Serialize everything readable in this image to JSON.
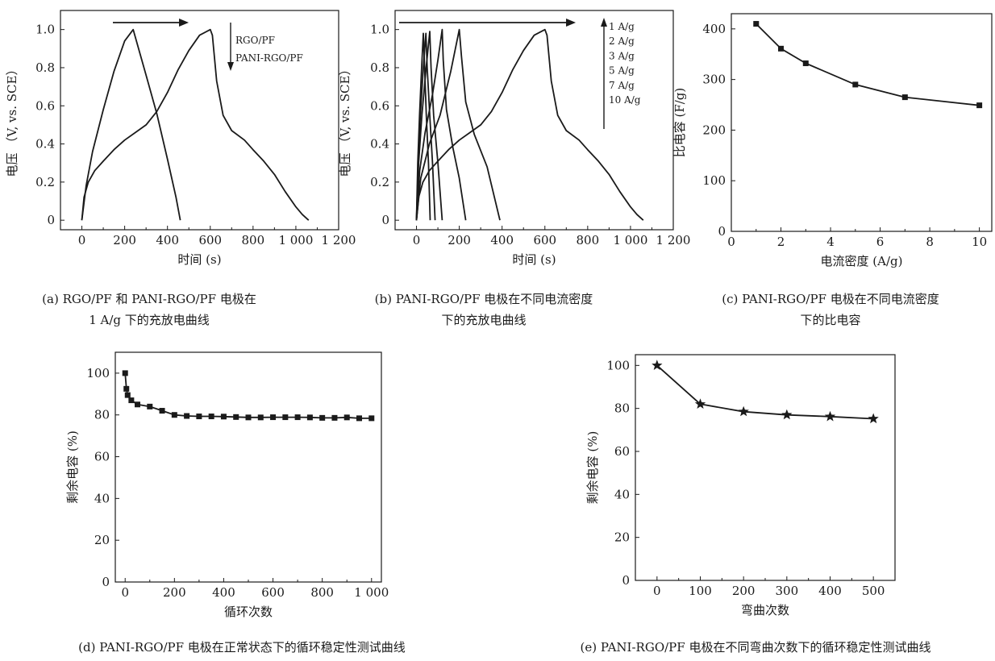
{
  "chart_data": [
    {
      "id": "a",
      "type": "line",
      "xlabel": "时间 (s)",
      "ylabel": "电压 （V, vs. SCE）",
      "xlim": [
        -100,
        1200
      ],
      "ylim": [
        -0.05,
        1.1
      ],
      "xticks": [
        0,
        200,
        400,
        600,
        800,
        1000,
        1200
      ],
      "xtick_labels": [
        "0",
        "200",
        "400",
        "600",
        "800",
        "1 000",
        "1 200"
      ],
      "yticks": [
        0,
        0.2,
        0.4,
        0.6,
        0.8,
        1.0
      ],
      "ytick_labels": [
        "0",
        "0.2",
        "0.4",
        "0.6",
        "0.8",
        "1.0"
      ],
      "legend_labels": [
        "RGO/PF",
        "PANI-RGO/PF"
      ],
      "series": [
        {
          "x": [
            0,
            20,
            50,
            100,
            150,
            200,
            240,
            300,
            350,
            400,
            440,
            460
          ],
          "y": [
            0,
            0.18,
            0.36,
            0.58,
            0.78,
            0.94,
            1.0,
            0.76,
            0.56,
            0.32,
            0.12,
            0.0
          ]
        },
        {
          "x": [
            0,
            10,
            30,
            60,
            100,
            150,
            200,
            250,
            300,
            350,
            400,
            450,
            500,
            550,
            600,
            610,
            630,
            660,
            700,
            760,
            800,
            850,
            900,
            950,
            1000,
            1030,
            1060
          ],
          "y": [
            0,
            0.12,
            0.2,
            0.26,
            0.31,
            0.37,
            0.42,
            0.46,
            0.5,
            0.57,
            0.67,
            0.79,
            0.89,
            0.97,
            1.0,
            0.97,
            0.73,
            0.55,
            0.47,
            0.42,
            0.37,
            0.31,
            0.24,
            0.15,
            0.07,
            0.03,
            0.0
          ]
        }
      ],
      "arrow_x": [
        240,
        650
      ],
      "caption": [
        "(a) RGO/PF 和 PANI-RGO/PF 电极在",
        "1 A/g 下的充放电曲线"
      ]
    },
    {
      "id": "b",
      "type": "line",
      "xlabel": "时间 (s)",
      "ylabel": "电压 （V, vs. SCE）",
      "xlim": [
        -100,
        1200
      ],
      "ylim": [
        -0.05,
        1.1
      ],
      "xticks": [
        0,
        200,
        400,
        600,
        800,
        1000,
        1200
      ],
      "xtick_labels": [
        "0",
        "200",
        "400",
        "600",
        "800",
        "1 000",
        "1 200"
      ],
      "yticks": [
        0,
        0.2,
        0.4,
        0.6,
        0.8,
        1.0
      ],
      "ytick_labels": [
        "0",
        "0.2",
        "0.4",
        "0.6",
        "0.8",
        "1.0"
      ],
      "legend_labels": [
        "1 A/g",
        "2 A/g",
        "3 A/g",
        "5 A/g",
        "7 A/g",
        "10 A/g"
      ],
      "series": [
        {
          "x": [
            0,
            10,
            30,
            60,
            100,
            150,
            200,
            250,
            300,
            350,
            400,
            450,
            500,
            550,
            600,
            610,
            630,
            660,
            700,
            760,
            800,
            850,
            900,
            950,
            1000,
            1030,
            1060
          ],
          "y": [
            0,
            0.12,
            0.2,
            0.26,
            0.31,
            0.37,
            0.42,
            0.46,
            0.5,
            0.57,
            0.67,
            0.79,
            0.89,
            0.97,
            1.0,
            0.97,
            0.73,
            0.55,
            0.47,
            0.42,
            0.37,
            0.31,
            0.24,
            0.15,
            0.07,
            0.03,
            0.0
          ]
        },
        {
          "x": [
            0,
            20,
            60,
            110,
            160,
            200,
            210,
            230,
            270,
            330,
            390
          ],
          "y": [
            0,
            0.22,
            0.4,
            0.55,
            0.78,
            1.0,
            0.86,
            0.62,
            0.45,
            0.28,
            0.0
          ]
        },
        {
          "x": [
            0,
            15,
            40,
            75,
            100,
            120,
            125,
            140,
            170,
            200,
            230
          ],
          "y": [
            0,
            0.26,
            0.46,
            0.66,
            0.84,
            1.0,
            0.84,
            0.58,
            0.38,
            0.22,
            0.0
          ]
        },
        {
          "x": [
            0,
            10,
            25,
            45,
            62,
            68,
            80,
            100,
            120
          ],
          "y": [
            0,
            0.3,
            0.55,
            0.8,
            0.99,
            0.8,
            0.55,
            0.3,
            0.0
          ]
        },
        {
          "x": [
            0,
            8,
            18,
            32,
            44,
            50,
            62,
            75,
            87
          ],
          "y": [
            0,
            0.3,
            0.55,
            0.8,
            0.98,
            0.8,
            0.55,
            0.3,
            0.0
          ]
        },
        {
          "x": [
            0,
            6,
            14,
            24,
            32,
            38,
            46,
            56,
            64
          ],
          "y": [
            0,
            0.3,
            0.55,
            0.8,
            0.98,
            0.8,
            0.55,
            0.3,
            0.0
          ]
        }
      ],
      "arrow_x": [
        0,
        650
      ],
      "caption": [
        "(b) PANI-RGO/PF 电极在不同电流密度",
        "下的充放电曲线"
      ]
    },
    {
      "id": "c",
      "type": "line",
      "xlabel": "电流密度 (A/g)",
      "ylabel": "比电容 (F/g)",
      "xlim": [
        0,
        10.5
      ],
      "ylim": [
        0,
        430
      ],
      "xticks": [
        0,
        2,
        4,
        6,
        8,
        10
      ],
      "xtick_labels": [
        "0",
        "2",
        "4",
        "6",
        "8",
        "10"
      ],
      "yticks": [
        0,
        100,
        200,
        300,
        400
      ],
      "ytick_labels": [
        "0",
        "100",
        "200",
        "300",
        "400"
      ],
      "marker": "square",
      "series": [
        {
          "x": [
            1,
            2,
            3,
            5,
            7,
            10
          ],
          "y": [
            410,
            361,
            332,
            290,
            265,
            249
          ]
        }
      ],
      "caption": [
        "(c) PANI-RGO/PF 电极在不同电流密度",
        "下的比电容"
      ]
    },
    {
      "id": "d",
      "type": "line",
      "xlabel": "循环次数",
      "ylabel": "剩余电容 (%)",
      "xlim": [
        -40,
        1040
      ],
      "ylim": [
        0,
        110
      ],
      "xticks": [
        0,
        200,
        400,
        600,
        800,
        1000
      ],
      "xtick_labels": [
        "0",
        "200",
        "400",
        "600",
        "800",
        "1 000"
      ],
      "yticks": [
        0,
        20,
        40,
        60,
        80,
        100
      ],
      "ytick_labels": [
        "0",
        "20",
        "40",
        "60",
        "80",
        "100"
      ],
      "marker": "square",
      "series": [
        {
          "x": [
            0,
            5,
            10,
            25,
            50,
            100,
            150,
            200,
            250,
            300,
            350,
            400,
            450,
            500,
            550,
            600,
            650,
            700,
            750,
            800,
            850,
            900,
            950,
            1000
          ],
          "y": [
            100,
            92.5,
            89.5,
            87,
            85,
            84,
            82,
            80,
            79.5,
            79.3,
            79.3,
            79.2,
            79,
            78.8,
            78.8,
            78.9,
            78.9,
            78.9,
            78.8,
            78.6,
            78.6,
            78.8,
            78.4,
            78.4
          ]
        }
      ],
      "caption": [
        "(d) PANI-RGO/PF 电极在正常状态下的循环稳定性测试曲线"
      ]
    },
    {
      "id": "e",
      "type": "line",
      "xlabel": "弯曲次数",
      "ylabel": "剩余电容 (%)",
      "xlim": [
        -50,
        550
      ],
      "ylim": [
        0,
        105
      ],
      "xticks": [
        0,
        100,
        200,
        300,
        400,
        500
      ],
      "xtick_labels": [
        "0",
        "100",
        "200",
        "300",
        "400",
        "500"
      ],
      "yticks": [
        0,
        20,
        40,
        60,
        80,
        100
      ],
      "ytick_labels": [
        "0",
        "20",
        "40",
        "60",
        "80",
        "100"
      ],
      "marker": "star",
      "series": [
        {
          "x": [
            0,
            100,
            200,
            300,
            400,
            500
          ],
          "y": [
            100,
            82,
            78.5,
            77,
            76.2,
            75.2
          ]
        }
      ],
      "caption": [
        "(e) PANI-RGO/PF 电极在不同弯曲次数下的循环稳定性测试曲线"
      ]
    }
  ]
}
